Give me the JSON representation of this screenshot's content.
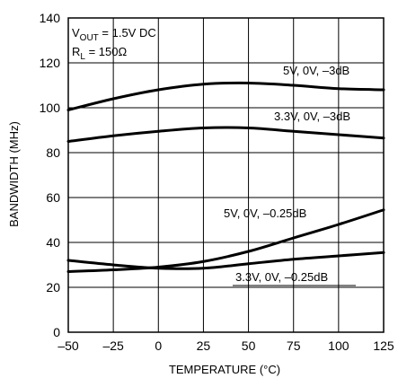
{
  "chart_data": {
    "type": "line",
    "xlabel": "TEMPERATURE (°C)",
    "ylabel": "BANDWIDTH (MHz)",
    "xlim": [
      -50,
      125
    ],
    "ylim": [
      0,
      140
    ],
    "xticks": [
      -50,
      -25,
      0,
      25,
      50,
      75,
      100,
      125
    ],
    "yticks": [
      0,
      20,
      40,
      60,
      80,
      100,
      120,
      140
    ],
    "xtick_labels": [
      "–50",
      "–25",
      "0",
      "25",
      "50",
      "75",
      "100",
      "125"
    ],
    "ytick_labels": [
      "0",
      "20",
      "40",
      "60",
      "80",
      "100",
      "120",
      "140"
    ],
    "grid": true,
    "conditions": {
      "line1": {
        "main": "V",
        "sub": "OUT",
        "rest": " = 1.5V DC"
      },
      "line2": {
        "main": "R",
        "sub": "L",
        "rest": " = 150Ω"
      }
    },
    "series": [
      {
        "name": "5V, 0V, –3dB",
        "x": [
          -50,
          -25,
          0,
          25,
          50,
          75,
          100,
          125
        ],
        "y": [
          99,
          104,
          108,
          110.5,
          111,
          110,
          108.5,
          108
        ]
      },
      {
        "name": "3.3V, 0V, –3dB",
        "x": [
          -50,
          -25,
          0,
          25,
          50,
          75,
          100,
          125
        ],
        "y": [
          85,
          87.5,
          89.5,
          91,
          91,
          89.5,
          88,
          86.5
        ]
      },
      {
        "name": "5V, 0V, –0.25dB",
        "x": [
          -50,
          -25,
          0,
          25,
          50,
          75,
          100,
          125
        ],
        "y": [
          27,
          27.8,
          29,
          31.5,
          36,
          42,
          48,
          54.5
        ]
      },
      {
        "name": "3.3V, 0V, –0.25dB",
        "x": [
          -50,
          -25,
          0,
          25,
          50,
          75,
          100,
          125
        ],
        "y": [
          32,
          30,
          28.5,
          28.5,
          30.5,
          32.5,
          34,
          35.5
        ]
      }
    ]
  }
}
